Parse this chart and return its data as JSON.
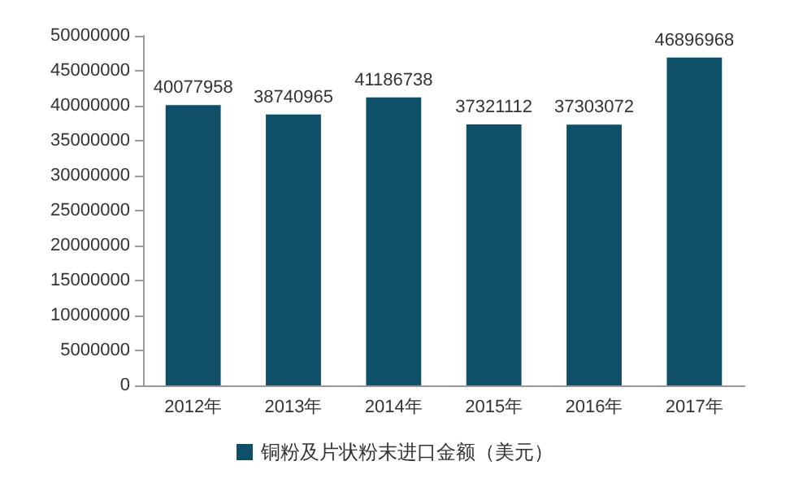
{
  "chart_data": {
    "type": "bar",
    "categories": [
      "2012年",
      "2013年",
      "2014年",
      "2015年",
      "2016年",
      "2017年"
    ],
    "series": [
      {
        "name": "铜粉及片状粉末进口金额（美元）",
        "color": "#0f4f68",
        "values": [
          40077958,
          38740965,
          41186738,
          37321112,
          37303072,
          46896968
        ]
      }
    ],
    "data_labels": true,
    "ylim": [
      0,
      50000000
    ],
    "yticks": [
      0,
      5000000,
      10000000,
      15000000,
      20000000,
      25000000,
      30000000,
      35000000,
      40000000,
      45000000,
      50000000
    ],
    "grid": false,
    "legend": "bottom"
  }
}
